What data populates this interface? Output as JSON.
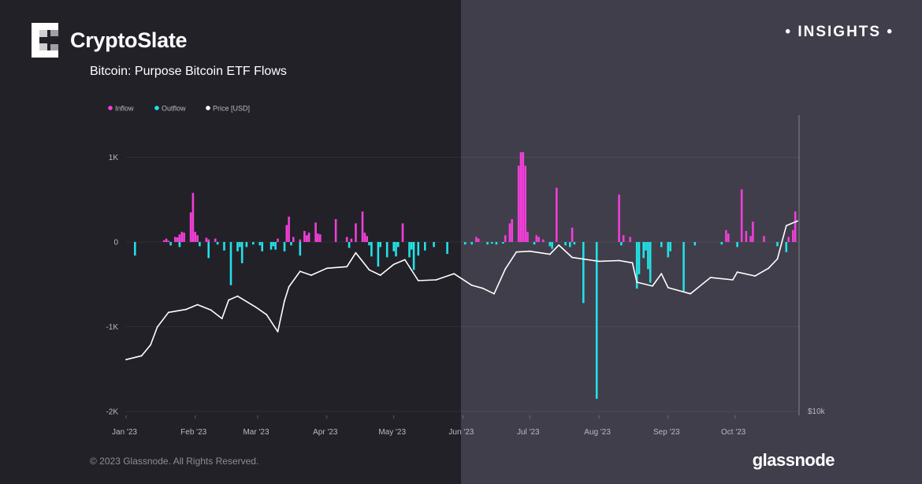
{
  "header": {
    "brand": "CryptoSlate",
    "insights": "• INSIGHTS •",
    "subtitle": "Bitcoin: Purpose Bitcoin ETF Flows"
  },
  "footer": {
    "copyright": "© 2023 Glassnode. All Rights Reserved.",
    "watermark": "glassnode"
  },
  "colors": {
    "inflow": "#f03fd8",
    "outflow": "#22e1e6",
    "price": "#ffffff"
  },
  "chart_data": {
    "type": "bar",
    "title": "Bitcoin: Purpose Bitcoin ETF Flows",
    "legend": [
      {
        "name": "Inflow",
        "color": "#f03fd8"
      },
      {
        "name": "Outflow",
        "color": "#22e1e6"
      },
      {
        "name": "Price [USD]",
        "color": "#ffffff"
      }
    ],
    "legend_position": "top-left",
    "grid": true,
    "x_range": [
      "2023-01-01",
      "2023-10-29"
    ],
    "x_ticks": [
      "Jan '23",
      "Feb '23",
      "Mar '23",
      "Apr '23",
      "May '23",
      "Jun '23",
      "Jul '23",
      "Aug '23",
      "Sep '23",
      "Oct '23"
    ],
    "y_left": {
      "ticks": [
        "1K",
        "0",
        "-1K",
        "-2K"
      ],
      "range": [
        -2000,
        1200
      ]
    },
    "y_right": {
      "ticks": [
        "$10k"
      ],
      "range": [
        10000,
        40000
      ]
    },
    "series": [
      {
        "name": "Inflow",
        "points": [
          {
            "x": "2023-01-18",
            "y": 20
          },
          {
            "x": "2023-01-19",
            "y": 40
          },
          {
            "x": "2023-01-20",
            "y": 15
          },
          {
            "x": "2023-01-23",
            "y": 60
          },
          {
            "x": "2023-01-24",
            "y": 55
          },
          {
            "x": "2023-01-25",
            "y": 90
          },
          {
            "x": "2023-01-26",
            "y": 120
          },
          {
            "x": "2023-01-27",
            "y": 110
          },
          {
            "x": "2023-01-30",
            "y": 350
          },
          {
            "x": "2023-01-31",
            "y": 580
          },
          {
            "x": "2023-02-01",
            "y": 120
          },
          {
            "x": "2023-02-02",
            "y": 80
          },
          {
            "x": "2023-02-06",
            "y": 50
          },
          {
            "x": "2023-02-07",
            "y": 30
          },
          {
            "x": "2023-02-10",
            "y": 40
          },
          {
            "x": "2023-03-10",
            "y": 40
          },
          {
            "x": "2023-03-14",
            "y": 200
          },
          {
            "x": "2023-03-15",
            "y": 300
          },
          {
            "x": "2023-03-17",
            "y": 60
          },
          {
            "x": "2023-03-20",
            "y": 30
          },
          {
            "x": "2023-03-22",
            "y": 130
          },
          {
            "x": "2023-03-23",
            "y": 80
          },
          {
            "x": "2023-03-24",
            "y": 110
          },
          {
            "x": "2023-03-27",
            "y": 230
          },
          {
            "x": "2023-03-28",
            "y": 100
          },
          {
            "x": "2023-03-29",
            "y": 90
          },
          {
            "x": "2023-04-05",
            "y": 270
          },
          {
            "x": "2023-04-10",
            "y": 60
          },
          {
            "x": "2023-04-12",
            "y": 40
          },
          {
            "x": "2023-04-14",
            "y": 220
          },
          {
            "x": "2023-04-17",
            "y": 360
          },
          {
            "x": "2023-04-18",
            "y": 110
          },
          {
            "x": "2023-04-19",
            "y": 70
          },
          {
            "x": "2023-05-05",
            "y": 220
          },
          {
            "x": "2023-06-07",
            "y": 60
          },
          {
            "x": "2023-06-08",
            "y": 40
          },
          {
            "x": "2023-06-20",
            "y": 80
          },
          {
            "x": "2023-06-22",
            "y": 220
          },
          {
            "x": "2023-06-23",
            "y": 270
          },
          {
            "x": "2023-06-26",
            "y": 900
          },
          {
            "x": "2023-06-27",
            "y": 1060
          },
          {
            "x": "2023-06-28",
            "y": 1060
          },
          {
            "x": "2023-06-29",
            "y": 900
          },
          {
            "x": "2023-06-30",
            "y": 120
          },
          {
            "x": "2023-07-04",
            "y": 80
          },
          {
            "x": "2023-07-05",
            "y": 60
          },
          {
            "x": "2023-07-07",
            "y": 30
          },
          {
            "x": "2023-07-13",
            "y": 640
          },
          {
            "x": "2023-07-20",
            "y": 170
          },
          {
            "x": "2023-08-10",
            "y": 560
          },
          {
            "x": "2023-08-12",
            "y": 80
          },
          {
            "x": "2023-08-15",
            "y": 60
          },
          {
            "x": "2023-09-27",
            "y": 140
          },
          {
            "x": "2023-09-28",
            "y": 100
          },
          {
            "x": "2023-10-04",
            "y": 620
          },
          {
            "x": "2023-10-06",
            "y": 130
          },
          {
            "x": "2023-10-08",
            "y": 70
          },
          {
            "x": "2023-10-09",
            "y": 240
          },
          {
            "x": "2023-10-14",
            "y": 70
          },
          {
            "x": "2023-10-25",
            "y": 60
          },
          {
            "x": "2023-10-27",
            "y": 140
          },
          {
            "x": "2023-10-28",
            "y": 360
          }
        ]
      },
      {
        "name": "Outflow",
        "points": [
          {
            "x": "2023-01-05",
            "y": -160
          },
          {
            "x": "2023-01-21",
            "y": -40
          },
          {
            "x": "2023-01-25",
            "y": -60
          },
          {
            "x": "2023-02-03",
            "y": -50
          },
          {
            "x": "2023-02-07",
            "y": -190
          },
          {
            "x": "2023-02-11",
            "y": -30
          },
          {
            "x": "2023-02-14",
            "y": -100
          },
          {
            "x": "2023-02-17",
            "y": -510
          },
          {
            "x": "2023-02-20",
            "y": -110
          },
          {
            "x": "2023-02-21",
            "y": -60
          },
          {
            "x": "2023-02-22",
            "y": -250
          },
          {
            "x": "2023-02-24",
            "y": -60
          },
          {
            "x": "2023-02-27",
            "y": -30
          },
          {
            "x": "2023-03-02",
            "y": -40
          },
          {
            "x": "2023-03-03",
            "y": -110
          },
          {
            "x": "2023-03-07",
            "y": -90
          },
          {
            "x": "2023-03-08",
            "y": -50
          },
          {
            "x": "2023-03-09",
            "y": -90
          },
          {
            "x": "2023-03-13",
            "y": -110
          },
          {
            "x": "2023-03-16",
            "y": -40
          },
          {
            "x": "2023-03-20",
            "y": -160
          },
          {
            "x": "2023-04-11",
            "y": -70
          },
          {
            "x": "2023-04-20",
            "y": -40
          },
          {
            "x": "2023-04-21",
            "y": -170
          },
          {
            "x": "2023-04-24",
            "y": -290
          },
          {
            "x": "2023-04-25",
            "y": -60
          },
          {
            "x": "2023-04-28",
            "y": -180
          },
          {
            "x": "2023-05-01",
            "y": -110
          },
          {
            "x": "2023-05-02",
            "y": -170
          },
          {
            "x": "2023-05-03",
            "y": -60
          },
          {
            "x": "2023-05-08",
            "y": -180
          },
          {
            "x": "2023-05-09",
            "y": -90
          },
          {
            "x": "2023-05-10",
            "y": -330
          },
          {
            "x": "2023-05-12",
            "y": -160
          },
          {
            "x": "2023-05-15",
            "y": -100
          },
          {
            "x": "2023-05-19",
            "y": -60
          },
          {
            "x": "2023-05-25",
            "y": -140
          },
          {
            "x": "2023-06-02",
            "y": -30
          },
          {
            "x": "2023-06-05",
            "y": -30
          },
          {
            "x": "2023-06-12",
            "y": -30
          },
          {
            "x": "2023-06-14",
            "y": -20
          },
          {
            "x": "2023-06-16",
            "y": -30
          },
          {
            "x": "2023-06-19",
            "y": -20
          },
          {
            "x": "2023-07-03",
            "y": -30
          },
          {
            "x": "2023-07-10",
            "y": -50
          },
          {
            "x": "2023-07-11",
            "y": -80
          },
          {
            "x": "2023-07-17",
            "y": -40
          },
          {
            "x": "2023-07-19",
            "y": -60
          },
          {
            "x": "2023-07-21",
            "y": -30
          },
          {
            "x": "2023-07-25",
            "y": -720
          },
          {
            "x": "2023-07-31",
            "y": -1850
          },
          {
            "x": "2023-08-11",
            "y": -40
          },
          {
            "x": "2023-08-18",
            "y": -550
          },
          {
            "x": "2023-08-19",
            "y": -380
          },
          {
            "x": "2023-08-21",
            "y": -190
          },
          {
            "x": "2023-08-22",
            "y": -100
          },
          {
            "x": "2023-08-23",
            "y": -320
          },
          {
            "x": "2023-08-24",
            "y": -480
          },
          {
            "x": "2023-08-29",
            "y": -60
          },
          {
            "x": "2023-09-01",
            "y": -180
          },
          {
            "x": "2023-09-02",
            "y": -110
          },
          {
            "x": "2023-09-08",
            "y": -580
          },
          {
            "x": "2023-09-13",
            "y": -40
          },
          {
            "x": "2023-09-25",
            "y": -30
          },
          {
            "x": "2023-10-02",
            "y": -60
          },
          {
            "x": "2023-10-20",
            "y": -50
          },
          {
            "x": "2023-10-24",
            "y": -120
          }
        ]
      },
      {
        "name": "Price [USD]",
        "axis": "right",
        "points": [
          {
            "x": "2023-01-01",
            "y": 16600
          },
          {
            "x": "2023-01-08",
            "y": 17100
          },
          {
            "x": "2023-01-12",
            "y": 18500
          },
          {
            "x": "2023-01-15",
            "y": 20800
          },
          {
            "x": "2023-01-20",
            "y": 22700
          },
          {
            "x": "2023-01-28",
            "y": 23100
          },
          {
            "x": "2023-02-02",
            "y": 23700
          },
          {
            "x": "2023-02-08",
            "y": 23000
          },
          {
            "x": "2023-02-13",
            "y": 21900
          },
          {
            "x": "2023-02-16",
            "y": 24300
          },
          {
            "x": "2023-02-20",
            "y": 24800
          },
          {
            "x": "2023-02-28",
            "y": 23400
          },
          {
            "x": "2023-03-05",
            "y": 22400
          },
          {
            "x": "2023-03-10",
            "y": 20200
          },
          {
            "x": "2023-03-13",
            "y": 24200
          },
          {
            "x": "2023-03-15",
            "y": 26000
          },
          {
            "x": "2023-03-20",
            "y": 28000
          },
          {
            "x": "2023-03-25",
            "y": 27500
          },
          {
            "x": "2023-04-01",
            "y": 28400
          },
          {
            "x": "2023-04-10",
            "y": 28600
          },
          {
            "x": "2023-04-14",
            "y": 30400
          },
          {
            "x": "2023-04-20",
            "y": 28200
          },
          {
            "x": "2023-04-25",
            "y": 27500
          },
          {
            "x": "2023-05-01",
            "y": 28900
          },
          {
            "x": "2023-05-06",
            "y": 29500
          },
          {
            "x": "2023-05-12",
            "y": 26800
          },
          {
            "x": "2023-05-20",
            "y": 26900
          },
          {
            "x": "2023-05-28",
            "y": 27700
          },
          {
            "x": "2023-06-05",
            "y": 26200
          },
          {
            "x": "2023-06-10",
            "y": 25800
          },
          {
            "x": "2023-06-15",
            "y": 25100
          },
          {
            "x": "2023-06-20",
            "y": 28300
          },
          {
            "x": "2023-06-25",
            "y": 30500
          },
          {
            "x": "2023-07-01",
            "y": 30600
          },
          {
            "x": "2023-07-10",
            "y": 30200
          },
          {
            "x": "2023-07-14",
            "y": 31400
          },
          {
            "x": "2023-07-20",
            "y": 29800
          },
          {
            "x": "2023-08-01",
            "y": 29300
          },
          {
            "x": "2023-08-10",
            "y": 29400
          },
          {
            "x": "2023-08-16",
            "y": 29100
          },
          {
            "x": "2023-08-18",
            "y": 26600
          },
          {
            "x": "2023-08-25",
            "y": 26100
          },
          {
            "x": "2023-08-29",
            "y": 27700
          },
          {
            "x": "2023-09-01",
            "y": 25900
          },
          {
            "x": "2023-09-11",
            "y": 25100
          },
          {
            "x": "2023-09-20",
            "y": 27200
          },
          {
            "x": "2023-09-30",
            "y": 26900
          },
          {
            "x": "2023-10-02",
            "y": 27900
          },
          {
            "x": "2023-10-10",
            "y": 27400
          },
          {
            "x": "2023-10-16",
            "y": 28400
          },
          {
            "x": "2023-10-20",
            "y": 29600
          },
          {
            "x": "2023-10-24",
            "y": 33900
          },
          {
            "x": "2023-10-29",
            "y": 34500
          }
        ]
      }
    ]
  }
}
